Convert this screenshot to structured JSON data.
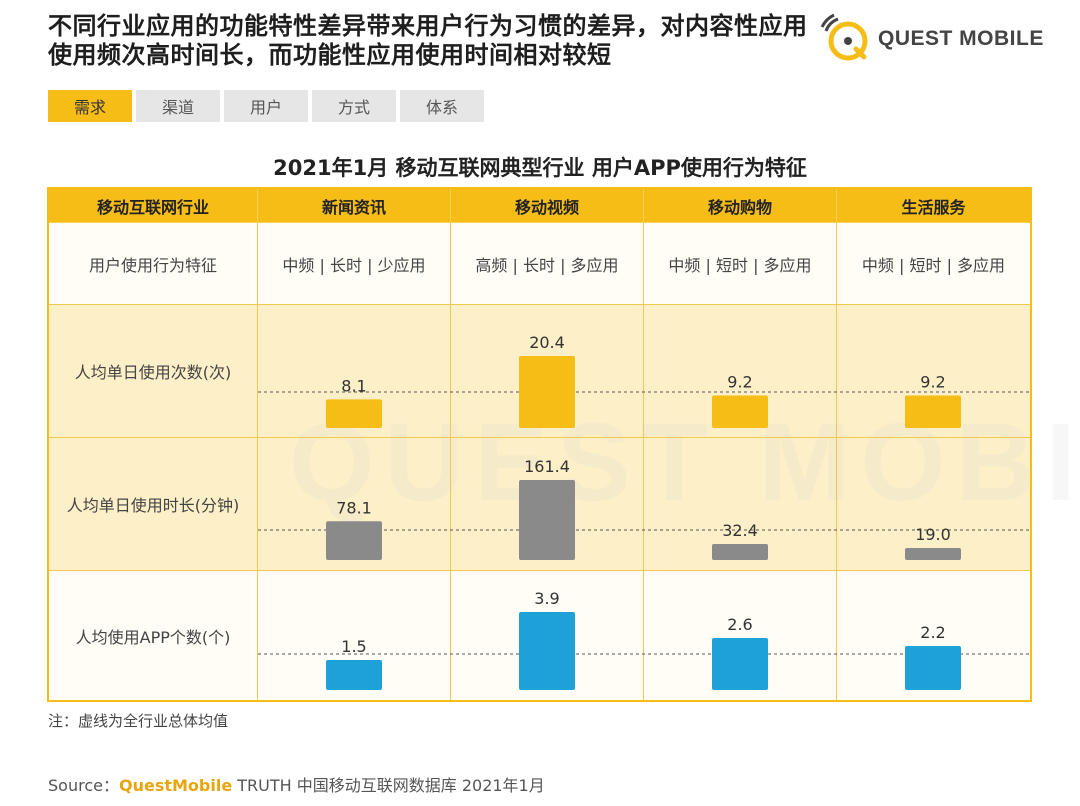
{
  "headline": "不同行业应用的功能特性差异带来用户行为习惯的差异，对内容性应用使用频次高时间长，而功能性应用使用时间相对较短",
  "logo": {
    "text": "QUEST MOBILE",
    "icon": "questmobile-logo-icon"
  },
  "tabs": [
    {
      "label": "需求",
      "active": true
    },
    {
      "label": "渠道",
      "active": false
    },
    {
      "label": "用户",
      "active": false
    },
    {
      "label": "方式",
      "active": false
    },
    {
      "label": "体系",
      "active": false
    }
  ],
  "table_title": "2021年1月 移动互联网典型行业 用户APP使用行为特征",
  "header": {
    "row_label": "移动互联网行业",
    "industries": [
      "新闻资讯",
      "移动视频",
      "移动购物",
      "生活服务"
    ]
  },
  "traits": {
    "label": "用户使用行为特征",
    "values": [
      "中频 | 长时 | 少应用",
      "高频 | 长时 | 多应用",
      "中频 | 短时 | 多应用",
      "中频 | 短时 | 多应用"
    ]
  },
  "chart_data": [
    {
      "type": "bar",
      "title": "人均单日使用次数(次)",
      "categories": [
        "新闻资讯",
        "移动视频",
        "移动购物",
        "生活服务"
      ],
      "values": [
        8.1,
        20.4,
        9.2,
        9.2
      ],
      "value_labels": [
        "8.1",
        "20.4",
        "9.2",
        "9.2"
      ],
      "color": "#f6bd17",
      "average_line": "dashed"
    },
    {
      "type": "bar",
      "title": "人均单日使用时长(分钟)",
      "categories": [
        "新闻资讯",
        "移动视频",
        "移动购物",
        "生活服务"
      ],
      "values": [
        78.1,
        161.4,
        32.4,
        19.0
      ],
      "value_labels": [
        "78.1",
        "161.4",
        "32.4",
        "19.0"
      ],
      "color": "#8a8a8a",
      "average_line": "dashed"
    },
    {
      "type": "bar",
      "title": "人均使用APP个数(个)",
      "categories": [
        "新闻资讯",
        "移动视频",
        "移动购物",
        "生活服务"
      ],
      "values": [
        1.5,
        3.9,
        2.6,
        2.2
      ],
      "value_labels": [
        "1.5",
        "3.9",
        "2.6",
        "2.2"
      ],
      "color": "#1ea0d8",
      "average_line": "dashed"
    }
  ],
  "note": "注：虚线为全行业总体均值",
  "source": {
    "prefix": "Source：",
    "brand": "QuestMobile",
    "rest": " TRUTH 中国移动互联网数据库 2021年1月"
  },
  "watermark": "QUEST MOBILE"
}
